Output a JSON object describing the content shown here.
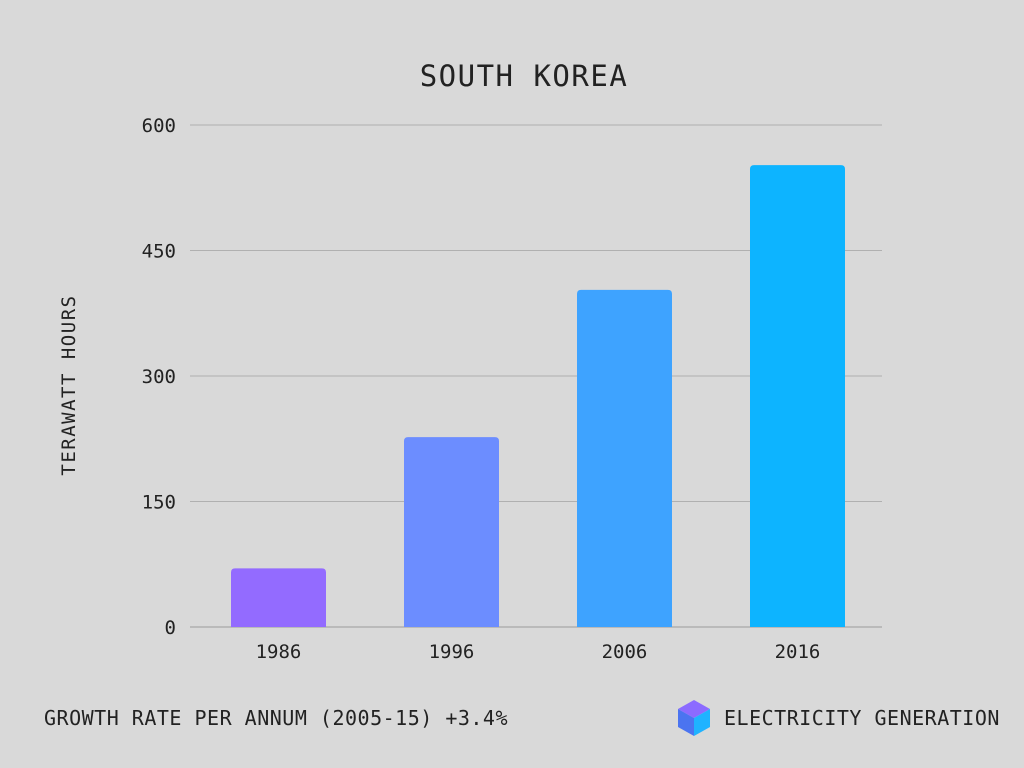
{
  "chart_data": {
    "type": "bar",
    "title": "SOUTH KOREA",
    "ylabel": "TERAWATT HOURS",
    "xlabel": "",
    "categories": [
      "1986",
      "1996",
      "2006",
      "2016"
    ],
    "values": [
      70,
      227,
      403,
      552
    ],
    "colors": [
      "#936bff",
      "#6c8dff",
      "#3ea3ff",
      "#0db4ff"
    ],
    "ylim": [
      0,
      600
    ],
    "yticks": [
      0,
      150,
      300,
      450,
      600
    ],
    "grid": true
  },
  "footer": {
    "growth_note": "GROWTH RATE PER ANNUM (2005-15) +3.4%",
    "category_label": "ELECTRICITY GENERATION",
    "category_icon": "cube-icon",
    "icon_colors": {
      "top": "#8c6bff",
      "left": "#4b74f0",
      "right": "#1fb3ff"
    }
  }
}
